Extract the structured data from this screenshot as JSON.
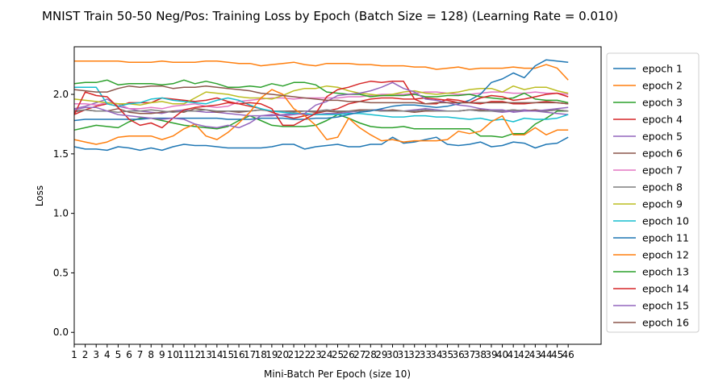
{
  "chart_data": {
    "type": "line",
    "title": "MNIST Train 50-50 Neg/Pos: Training Loss by Epoch (Batch Size = 128) (Learning Rate = 0.010)",
    "xlabel": "Mini-Batch Per Epoch (size 10)",
    "ylabel": "Loss",
    "xlim": [
      1,
      49
    ],
    "ylim": [
      -0.1,
      2.4
    ],
    "x_ticks": [
      "1",
      "2",
      "3",
      "4",
      "5",
      "6",
      "7",
      "8",
      "9",
      "10",
      "11",
      "12",
      "13",
      "14",
      "15",
      "16",
      "17",
      "18",
      "19",
      "20",
      "21",
      "22",
      "23",
      "24",
      "25",
      "26",
      "27",
      "28",
      "29",
      "30",
      "31",
      "32",
      "33",
      "34",
      "35",
      "36",
      "37",
      "38",
      "39",
      "40",
      "41",
      "42",
      "43",
      "44",
      "45",
      "46"
    ],
    "y_ticks": [
      "0.0",
      "0.5",
      "1.0",
      "1.5",
      "2.0"
    ],
    "y_tick_values": [
      0.0,
      0.5,
      1.0,
      1.5,
      2.0
    ],
    "legend_position": "right, outside plot",
    "grid": false,
    "x": [
      1,
      2,
      3,
      4,
      5,
      6,
      7,
      8,
      9,
      10,
      11,
      12,
      13,
      14,
      15,
      16,
      17,
      18,
      19,
      20,
      21,
      22,
      23,
      24,
      25,
      26,
      27,
      28,
      29,
      30,
      31,
      32,
      33,
      34,
      35,
      36,
      37,
      38,
      39,
      40,
      41,
      42,
      43,
      44,
      45,
      46
    ],
    "series": [
      {
        "name": "epoch 1",
        "color": "#1f77b4",
        "values": [
          1.56,
          1.54,
          1.54,
          1.53,
          1.56,
          1.55,
          1.53,
          1.55,
          1.53,
          1.56,
          1.58,
          1.57,
          1.57,
          1.56,
          1.55,
          1.55,
          1.55,
          1.55,
          1.56,
          1.58,
          1.58,
          1.54,
          1.56,
          1.57,
          1.58,
          1.56,
          1.56,
          1.58,
          1.58,
          1.64,
          1.59,
          1.6,
          1.62,
          1.64,
          1.58,
          1.57,
          1.58,
          1.6,
          1.56,
          1.57,
          1.6,
          1.59,
          1.55,
          1.58,
          1.59,
          1.64
        ]
      },
      {
        "name": "epoch 2",
        "color": "#ff7f0e",
        "values": [
          2.28,
          2.28,
          2.28,
          2.28,
          2.28,
          2.27,
          2.27,
          2.27,
          2.28,
          2.27,
          2.27,
          2.27,
          2.28,
          2.28,
          2.27,
          2.26,
          2.26,
          2.24,
          2.25,
          2.26,
          2.27,
          2.25,
          2.24,
          2.26,
          2.26,
          2.26,
          2.25,
          2.25,
          2.24,
          2.24,
          2.24,
          2.23,
          2.23,
          2.21,
          2.22,
          2.23,
          2.21,
          2.22,
          2.22,
          2.22,
          2.23,
          2.22,
          2.22,
          2.25,
          2.22,
          2.12
        ]
      },
      {
        "name": "epoch 3",
        "color": "#2ca02c",
        "values": [
          1.7,
          1.72,
          1.74,
          1.73,
          1.72,
          1.77,
          1.8,
          1.8,
          1.78,
          1.76,
          1.74,
          1.73,
          1.72,
          1.71,
          1.73,
          1.78,
          1.82,
          1.78,
          1.74,
          1.73,
          1.73,
          1.73,
          1.74,
          1.78,
          1.83,
          1.8,
          1.76,
          1.73,
          1.72,
          1.72,
          1.73,
          1.71,
          1.71,
          1.71,
          1.71,
          1.71,
          1.71,
          1.65,
          1.65,
          1.64,
          1.67,
          1.67,
          1.75,
          1.8,
          1.86,
          1.86
        ]
      },
      {
        "name": "epoch 4",
        "color": "#d62728",
        "values": [
          1.83,
          1.87,
          1.9,
          1.92,
          1.9,
          1.93,
          1.93,
          1.93,
          1.97,
          1.96,
          1.95,
          1.94,
          1.95,
          1.97,
          1.94,
          1.92,
          1.9,
          1.88,
          1.85,
          1.82,
          1.8,
          1.82,
          1.84,
          1.86,
          1.88,
          1.92,
          1.94,
          1.96,
          1.97,
          1.97,
          1.96,
          1.96,
          1.97,
          1.96,
          1.95,
          1.93,
          1.93,
          1.92,
          1.94,
          1.94,
          1.92,
          1.92,
          1.93,
          1.94,
          1.93,
          1.92
        ]
      },
      {
        "name": "epoch 5",
        "color": "#9467bd",
        "values": [
          1.88,
          1.9,
          1.93,
          1.96,
          1.9,
          1.88,
          1.86,
          1.85,
          1.84,
          1.86,
          1.87,
          1.86,
          1.85,
          1.85,
          1.84,
          1.83,
          1.82,
          1.82,
          1.82,
          1.83,
          1.84,
          1.83,
          1.83,
          1.84,
          1.84,
          1.85,
          1.86,
          1.87,
          1.87,
          1.86,
          1.86,
          1.87,
          1.88,
          1.87,
          1.86,
          1.86,
          1.87,
          1.86,
          1.86,
          1.85,
          1.86,
          1.87,
          1.86,
          1.85,
          1.84,
          1.83
        ]
      },
      {
        "name": "epoch 6",
        "color": "#8c564b",
        "values": [
          1.86,
          1.87,
          1.86,
          1.86,
          1.88,
          1.85,
          1.84,
          1.84,
          1.85,
          1.86,
          1.85,
          1.88,
          1.87,
          1.85,
          1.86,
          1.85,
          1.86,
          1.87,
          1.86,
          1.86,
          1.86,
          1.86,
          1.85,
          1.86,
          1.85,
          1.86,
          1.87,
          1.87,
          1.86,
          1.87,
          1.86,
          1.85,
          1.86,
          1.86,
          1.86,
          1.86,
          1.87,
          1.87,
          1.86,
          1.86,
          1.87,
          1.86,
          1.87,
          1.86,
          1.87,
          1.86
        ]
      },
      {
        "name": "epoch 7",
        "color": "#e377c2",
        "values": [
          1.92,
          1.92,
          1.91,
          1.93,
          1.92,
          1.88,
          1.88,
          1.89,
          1.88,
          1.9,
          1.91,
          1.92,
          1.9,
          1.89,
          1.9,
          1.94,
          1.95,
          1.96,
          1.97,
          1.97,
          1.96,
          1.97,
          1.97,
          1.97,
          1.97,
          1.98,
          1.98,
          1.99,
          2.0,
          2.0,
          2.0,
          2.01,
          2.02,
          2.02,
          2.01,
          2.0,
          2.0,
          2.01,
          2.02,
          2.02,
          2.01,
          2.01,
          2.02,
          2.01,
          2.01,
          2.0
        ]
      },
      {
        "name": "epoch 8",
        "color": "#7f7f7f",
        "values": [
          1.85,
          1.87,
          1.86,
          1.86,
          1.85,
          1.86,
          1.86,
          1.87,
          1.86,
          1.85,
          1.86,
          1.86,
          1.87,
          1.86,
          1.86,
          1.86,
          1.86,
          1.87,
          1.86,
          1.86,
          1.85,
          1.86,
          1.86,
          1.87,
          1.86,
          1.86,
          1.86,
          1.87,
          1.86,
          1.86,
          1.86,
          1.86,
          1.87,
          1.86,
          1.86,
          1.86,
          1.87,
          1.86,
          1.86,
          1.86,
          1.87,
          1.86,
          1.86,
          1.86,
          1.87,
          1.86
        ]
      },
      {
        "name": "epoch 9",
        "color": "#bcbd22",
        "values": [
          1.96,
          1.95,
          1.94,
          1.93,
          1.92,
          1.92,
          1.91,
          1.93,
          1.94,
          1.92,
          1.92,
          1.97,
          2.02,
          2.01,
          2.0,
          1.98,
          1.97,
          1.97,
          1.96,
          1.99,
          2.03,
          2.05,
          2.05,
          2.07,
          2.06,
          2.03,
          2.01,
          2.0,
          1.99,
          2.0,
          2.02,
          2.03,
          2.01,
          2.0,
          2.01,
          2.02,
          2.04,
          2.05,
          2.05,
          2.02,
          2.07,
          2.04,
          2.06,
          2.06,
          2.03,
          2.01
        ]
      },
      {
        "name": "epoch 10",
        "color": "#17becf",
        "values": [
          2.06,
          2.06,
          2.06,
          1.92,
          1.9,
          1.92,
          1.93,
          1.96,
          1.97,
          1.95,
          1.94,
          1.93,
          1.92,
          1.95,
          1.97,
          1.95,
          1.91,
          1.88,
          1.86,
          1.85,
          1.84,
          1.84,
          1.83,
          1.83,
          1.83,
          1.84,
          1.84,
          1.83,
          1.82,
          1.81,
          1.81,
          1.82,
          1.82,
          1.81,
          1.81,
          1.8,
          1.79,
          1.8,
          1.78,
          1.79,
          1.77,
          1.8,
          1.79,
          1.79,
          1.8,
          1.83
        ]
      },
      {
        "name": "epoch 11",
        "color": "#1f77b4",
        "values": [
          1.78,
          1.79,
          1.79,
          1.79,
          1.79,
          1.79,
          1.79,
          1.8,
          1.8,
          1.8,
          1.8,
          1.8,
          1.8,
          1.8,
          1.79,
          1.79,
          1.79,
          1.8,
          1.8,
          1.8,
          1.79,
          1.79,
          1.8,
          1.8,
          1.81,
          1.83,
          1.85,
          1.86,
          1.88,
          1.9,
          1.91,
          1.91,
          1.9,
          1.89,
          1.9,
          1.92,
          1.95,
          2.0,
          2.1,
          2.13,
          2.18,
          2.14,
          2.24,
          2.29,
          2.28,
          2.27
        ]
      },
      {
        "name": "epoch 12",
        "color": "#ff7f0e",
        "values": [
          1.62,
          1.6,
          1.58,
          1.6,
          1.64,
          1.65,
          1.65,
          1.65,
          1.62,
          1.65,
          1.71,
          1.75,
          1.65,
          1.62,
          1.68,
          1.76,
          1.85,
          1.97,
          2.04,
          2.0,
          1.88,
          1.82,
          1.74,
          1.62,
          1.64,
          1.8,
          1.72,
          1.66,
          1.61,
          1.62,
          1.6,
          1.61,
          1.61,
          1.61,
          1.62,
          1.69,
          1.67,
          1.69,
          1.77,
          1.82,
          1.66,
          1.66,
          1.72,
          1.66,
          1.7,
          1.7
        ]
      },
      {
        "name": "epoch 13",
        "color": "#2ca02c",
        "values": [
          2.09,
          2.1,
          2.1,
          2.12,
          2.08,
          2.09,
          2.09,
          2.09,
          2.08,
          2.09,
          2.12,
          2.09,
          2.11,
          2.09,
          2.06,
          2.06,
          2.07,
          2.06,
          2.09,
          2.07,
          2.1,
          2.1,
          2.08,
          2.02,
          2.01,
          2.0,
          2.0,
          1.98,
          1.99,
          1.99,
          1.99,
          2.0,
          1.98,
          1.98,
          1.99,
          1.99,
          2.0,
          1.98,
          1.97,
          1.96,
          1.97,
          2.01,
          1.96,
          1.95,
          1.95,
          1.93
        ]
      },
      {
        "name": "epoch 14",
        "color": "#d62728",
        "values": [
          1.83,
          2.02,
          1.99,
          1.98,
          1.89,
          1.79,
          1.74,
          1.76,
          1.72,
          1.8,
          1.87,
          1.89,
          1.9,
          1.91,
          1.93,
          1.92,
          1.93,
          1.92,
          1.88,
          1.74,
          1.74,
          1.79,
          1.84,
          1.98,
          2.04,
          2.06,
          2.09,
          2.11,
          2.1,
          2.11,
          2.11,
          1.96,
          1.92,
          1.92,
          1.96,
          1.95,
          1.93,
          1.97,
          1.99,
          1.98,
          1.95,
          1.96,
          1.98,
          2.0,
          2.01,
          1.98
        ]
      },
      {
        "name": "epoch 15",
        "color": "#9467bd",
        "values": [
          1.87,
          1.89,
          1.89,
          1.86,
          1.83,
          1.82,
          1.81,
          1.8,
          1.79,
          1.8,
          1.79,
          1.75,
          1.73,
          1.72,
          1.74,
          1.72,
          1.76,
          1.82,
          1.83,
          1.82,
          1.83,
          1.84,
          1.91,
          1.94,
          1.99,
          2.0,
          2.01,
          2.03,
          2.06,
          2.1,
          2.05,
          2.02,
          1.96,
          1.95,
          1.93,
          1.91,
          1.9,
          1.88,
          1.87,
          1.87,
          1.85,
          1.86,
          1.86,
          1.87,
          1.88,
          1.89
        ]
      },
      {
        "name": "epoch 16",
        "color": "#8c564b",
        "values": [
          2.04,
          2.03,
          2.02,
          2.02,
          2.05,
          2.07,
          2.06,
          2.07,
          2.07,
          2.05,
          2.06,
          2.06,
          2.07,
          2.06,
          2.05,
          2.04,
          2.03,
          2.01,
          2.0,
          1.99,
          1.98,
          1.97,
          1.96,
          1.95,
          1.95,
          1.94,
          1.94,
          1.93,
          1.93,
          1.93,
          1.93,
          1.93,
          1.92,
          1.93,
          1.93,
          1.93,
          1.93,
          1.93,
          1.93,
          1.93,
          1.93,
          1.93,
          1.93,
          1.93,
          1.93,
          1.92
        ]
      }
    ]
  }
}
